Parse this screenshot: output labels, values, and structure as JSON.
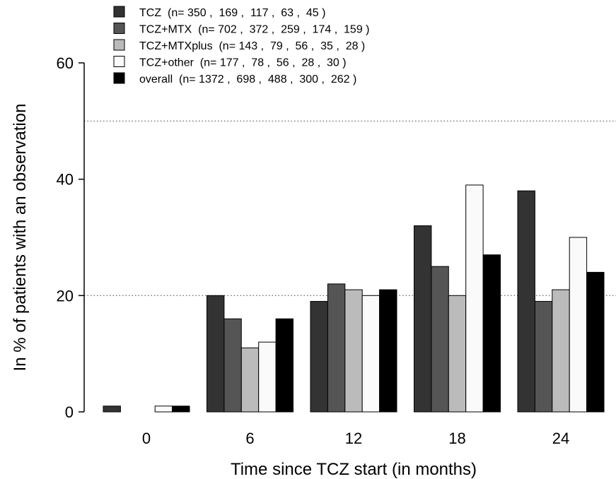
{
  "chart_data": {
    "type": "bar",
    "title": "",
    "xlabel": "Time since TCZ start (in months)",
    "ylabel": "In % of patients with an observation",
    "categories": [
      "0",
      "6",
      "12",
      "18",
      "24"
    ],
    "ylim": [
      0,
      60
    ],
    "yticks": [
      "0",
      "20",
      "40",
      "60"
    ],
    "reference_lines": [
      20,
      50
    ],
    "legend_position": "top-left",
    "series": [
      {
        "name": "TCZ  (n= 350 ,  169 ,  117 ,  63 ,  45 )",
        "color": "#333333",
        "values": [
          1,
          20,
          19,
          32,
          38
        ]
      },
      {
        "name": "TCZ+MTX  (n= 702 ,  372 ,  259 ,  174 ,  159 )",
        "color": "#555555",
        "values": [
          0,
          16,
          22,
          25,
          19
        ]
      },
      {
        "name": "TCZ+MTXplus  (n= 143 ,  79 ,  56 ,  35 ,  28 )",
        "color": "#bbbbbb",
        "values": [
          0,
          11,
          21,
          20,
          21
        ]
      },
      {
        "name": "TCZ+other  (n= 177 ,  78 ,  56 ,  28 ,  30 )",
        "color": "#fafafa",
        "values": [
          1,
          12,
          20,
          39,
          30
        ]
      },
      {
        "name": "overall  (n= 1372 ,  698 ,  488 ,  300 ,  262 )",
        "color": "#000000",
        "values": [
          1,
          16,
          21,
          27,
          24
        ]
      }
    ]
  }
}
